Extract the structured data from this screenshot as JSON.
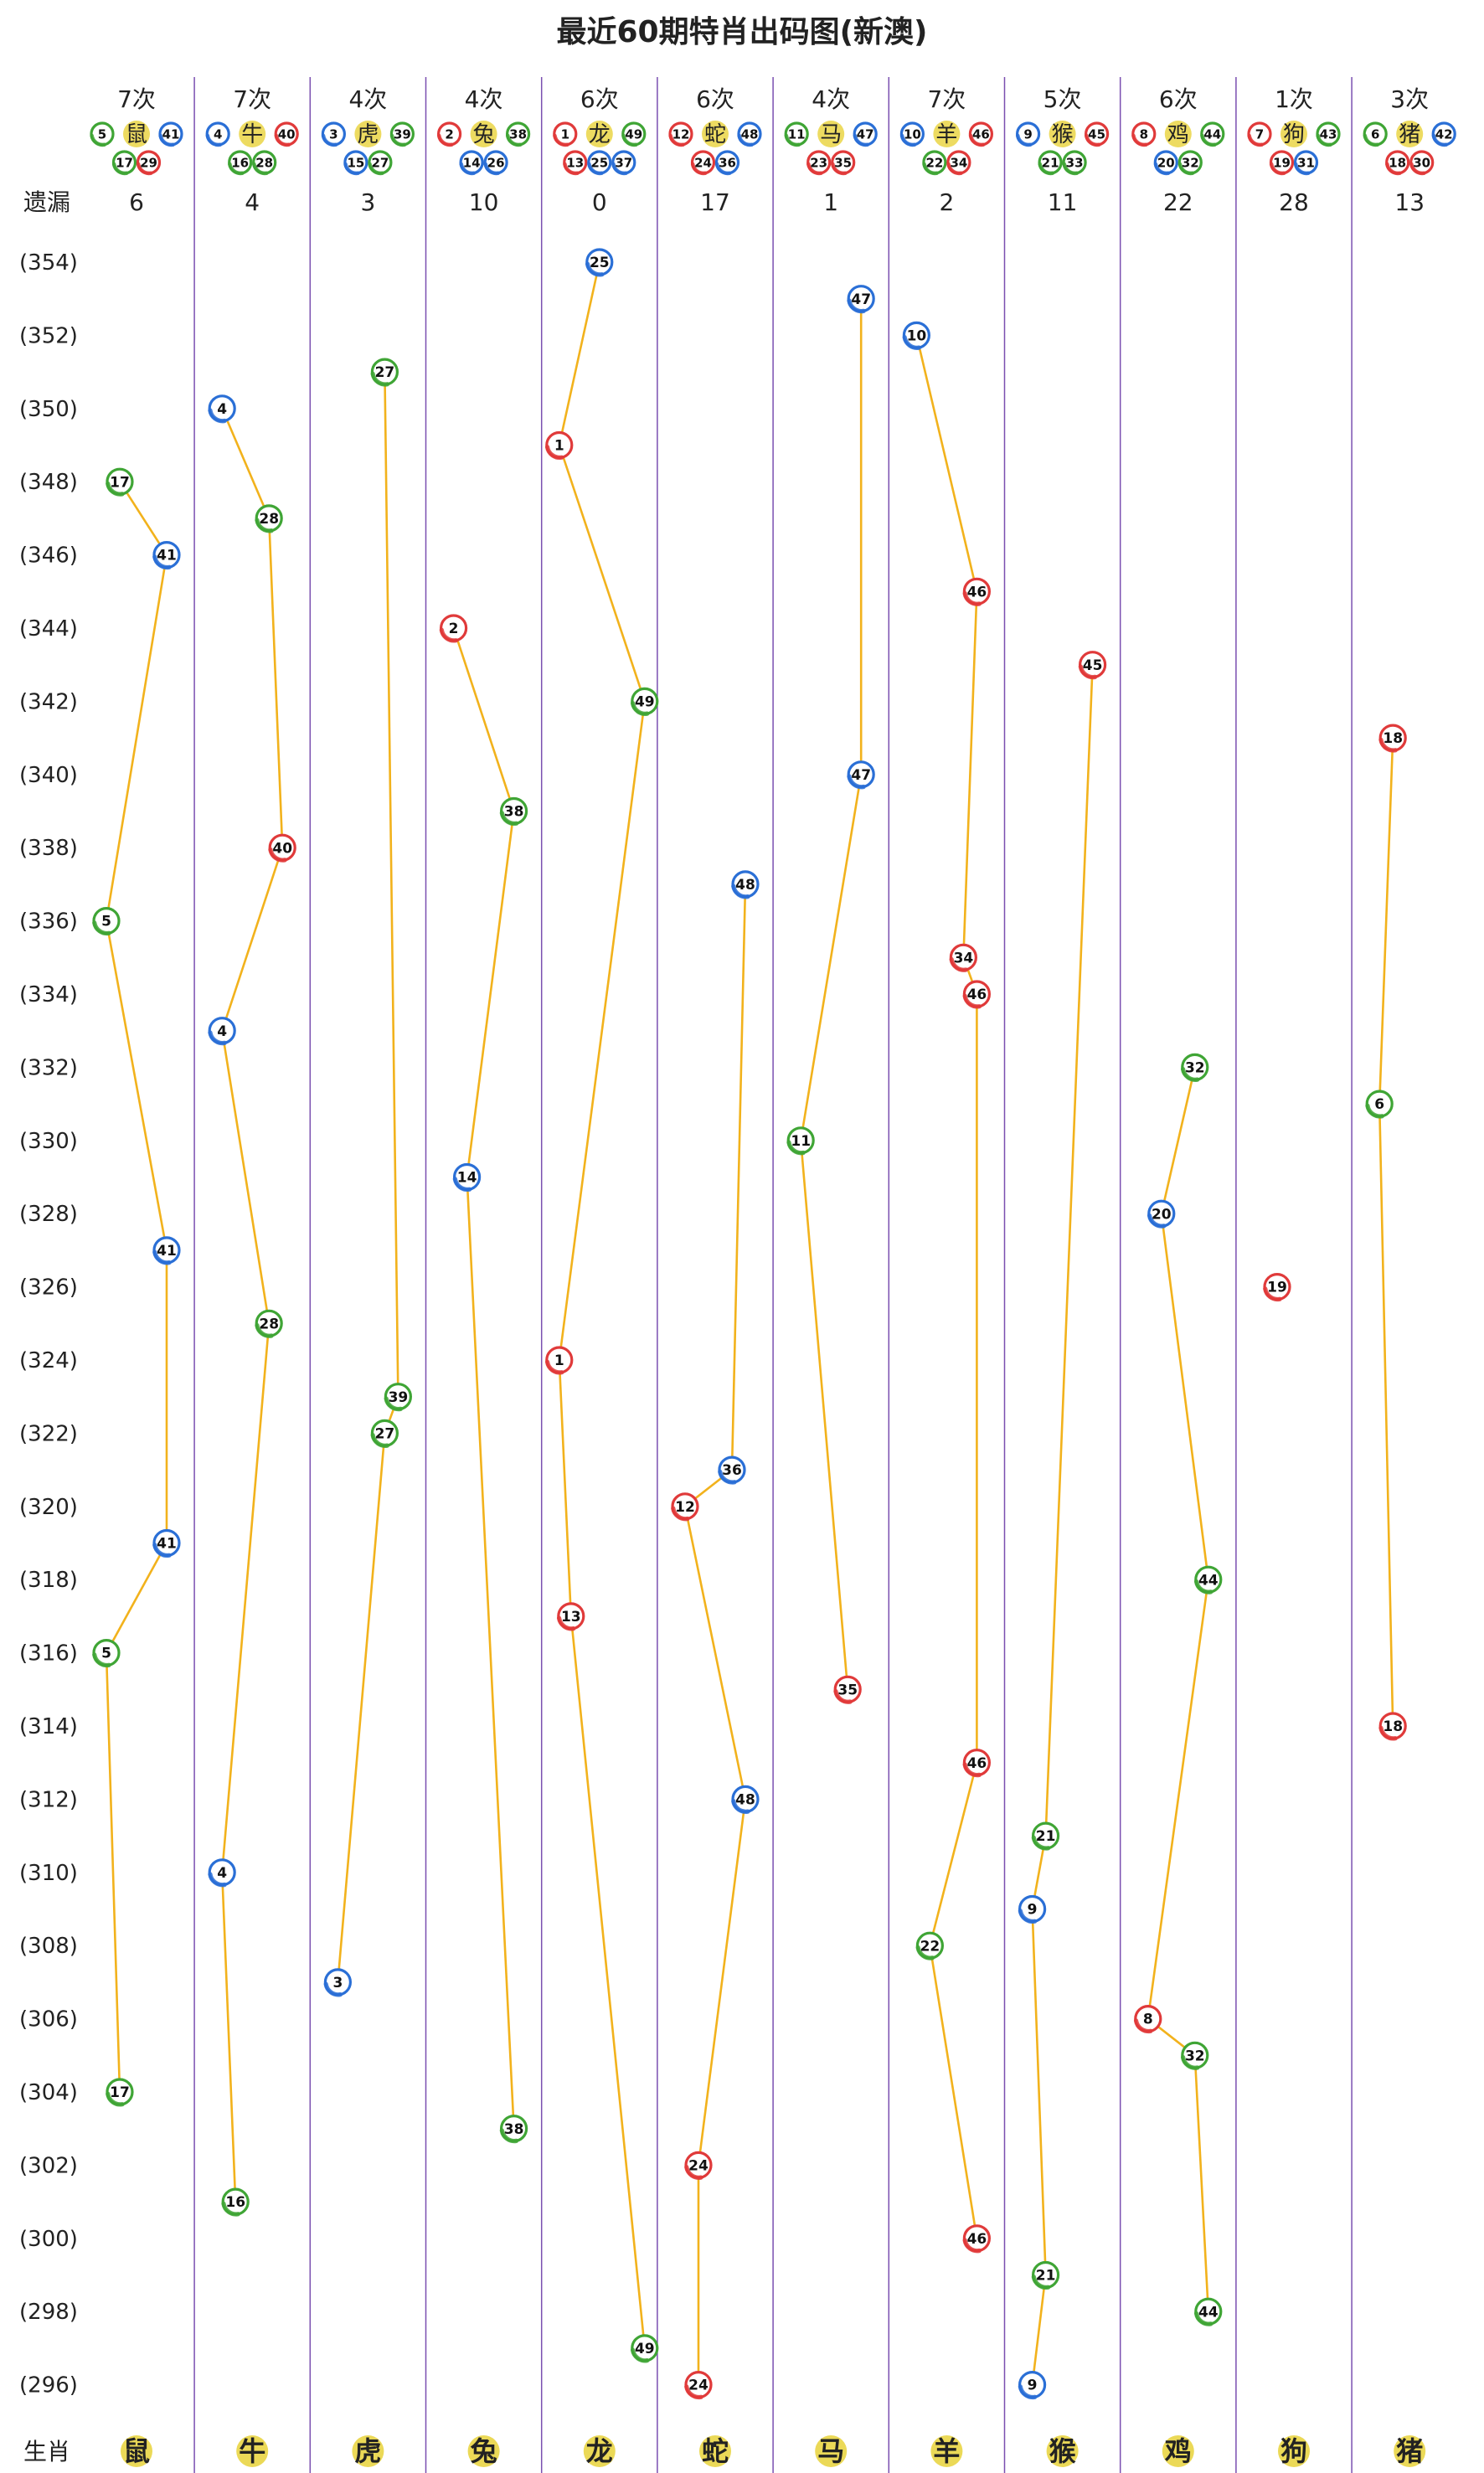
{
  "title": "最近60期特肖出码图(新澳)",
  "row_label_missing": "遗漏",
  "row_label_zodiac": "生肖",
  "colors": {
    "red": "#e03a3a",
    "blue": "#2a6fd6",
    "green": "#3fa535",
    "line": "#f2b21c",
    "divider": "#7a4fb0",
    "zodiac_badge": "#e8d23a"
  },
  "chart_data": {
    "type": "scatter",
    "title": "最近60期特肖出码图(新澳)",
    "period_range": [
      295,
      355
    ],
    "y_tick_labels": [
      "(354)",
      "(352)",
      "(350)",
      "(348)",
      "(346)",
      "(344)",
      "(342)",
      "(340)",
      "(338)",
      "(336)",
      "(334)",
      "(332)",
      "(330)",
      "(328)",
      "(326)",
      "(324)",
      "(322)",
      "(320)",
      "(318)",
      "(316)",
      "(314)",
      "(312)",
      "(310)",
      "(308)",
      "(306)",
      "(304)",
      "(302)",
      "(300)",
      "(298)",
      "(296)"
    ],
    "columns": [
      {
        "zodiac": "鼠",
        "count_label": "7次",
        "missing": "6",
        "numbers": [
          {
            "n": "5",
            "c": "green"
          },
          {
            "n": "41",
            "c": "blue"
          },
          {
            "n": "17",
            "c": "green"
          },
          {
            "n": "29",
            "c": "red"
          }
        ],
        "points": [
          {
            "p": 348,
            "n": "17",
            "c": "green"
          },
          {
            "p": 346,
            "n": "41",
            "c": "blue"
          },
          {
            "p": 336,
            "n": "5",
            "c": "green"
          },
          {
            "p": 327,
            "n": "41",
            "c": "blue"
          },
          {
            "p": 319,
            "n": "41",
            "c": "blue"
          },
          {
            "p": 316,
            "n": "5",
            "c": "green"
          },
          {
            "p": 304,
            "n": "17",
            "c": "green"
          }
        ]
      },
      {
        "zodiac": "牛",
        "count_label": "7次",
        "missing": "4",
        "numbers": [
          {
            "n": "4",
            "c": "blue"
          },
          {
            "n": "40",
            "c": "red"
          },
          {
            "n": "16",
            "c": "green"
          },
          {
            "n": "28",
            "c": "green"
          }
        ],
        "points": [
          {
            "p": 350,
            "n": "4",
            "c": "blue"
          },
          {
            "p": 347,
            "n": "28",
            "c": "green"
          },
          {
            "p": 338,
            "n": "40",
            "c": "red"
          },
          {
            "p": 333,
            "n": "4",
            "c": "blue"
          },
          {
            "p": 325,
            "n": "28",
            "c": "green"
          },
          {
            "p": 310,
            "n": "4",
            "c": "blue"
          },
          {
            "p": 301,
            "n": "16",
            "c": "green"
          }
        ]
      },
      {
        "zodiac": "虎",
        "count_label": "4次",
        "missing": "3",
        "numbers": [
          {
            "n": "3",
            "c": "blue"
          },
          {
            "n": "39",
            "c": "green"
          },
          {
            "n": "15",
            "c": "blue"
          },
          {
            "n": "27",
            "c": "green"
          }
        ],
        "points": [
          {
            "p": 351,
            "n": "27",
            "c": "green"
          },
          {
            "p": 323,
            "n": "39",
            "c": "green"
          },
          {
            "p": 322,
            "n": "27",
            "c": "green"
          },
          {
            "p": 307,
            "n": "3",
            "c": "blue"
          }
        ]
      },
      {
        "zodiac": "兔",
        "count_label": "4次",
        "missing": "10",
        "numbers": [
          {
            "n": "2",
            "c": "red"
          },
          {
            "n": "38",
            "c": "green"
          },
          {
            "n": "14",
            "c": "blue"
          },
          {
            "n": "26",
            "c": "blue"
          }
        ],
        "points": [
          {
            "p": 344,
            "n": "2",
            "c": "red"
          },
          {
            "p": 339,
            "n": "38",
            "c": "green"
          },
          {
            "p": 329,
            "n": "14",
            "c": "blue"
          },
          {
            "p": 303,
            "n": "38",
            "c": "green"
          }
        ]
      },
      {
        "zodiac": "龙",
        "count_label": "6次",
        "missing": "0",
        "numbers": [
          {
            "n": "1",
            "c": "red"
          },
          {
            "n": "49",
            "c": "green"
          },
          {
            "n": "13",
            "c": "red"
          },
          {
            "n": "25",
            "c": "blue"
          },
          {
            "n": "37",
            "c": "blue"
          }
        ],
        "points": [
          {
            "p": 354,
            "n": "25",
            "c": "blue"
          },
          {
            "p": 349,
            "n": "1",
            "c": "red"
          },
          {
            "p": 342,
            "n": "49",
            "c": "green"
          },
          {
            "p": 324,
            "n": "1",
            "c": "red"
          },
          {
            "p": 317,
            "n": "13",
            "c": "red"
          },
          {
            "p": 297,
            "n": "49",
            "c": "green"
          }
        ]
      },
      {
        "zodiac": "蛇",
        "count_label": "6次",
        "missing": "17",
        "numbers": [
          {
            "n": "12",
            "c": "red"
          },
          {
            "n": "48",
            "c": "blue"
          },
          {
            "n": "24",
            "c": "red"
          },
          {
            "n": "36",
            "c": "blue"
          }
        ],
        "points": [
          {
            "p": 337,
            "n": "48",
            "c": "blue"
          },
          {
            "p": 321,
            "n": "36",
            "c": "blue"
          },
          {
            "p": 320,
            "n": "12",
            "c": "red"
          },
          {
            "p": 312,
            "n": "48",
            "c": "blue"
          },
          {
            "p": 302,
            "n": "24",
            "c": "red"
          },
          {
            "p": 296,
            "n": "24",
            "c": "red"
          }
        ]
      },
      {
        "zodiac": "马",
        "count_label": "4次",
        "missing": "1",
        "numbers": [
          {
            "n": "11",
            "c": "green"
          },
          {
            "n": "47",
            "c": "blue"
          },
          {
            "n": "23",
            "c": "red"
          },
          {
            "n": "35",
            "c": "red"
          }
        ],
        "points": [
          {
            "p": 353,
            "n": "47",
            "c": "blue"
          },
          {
            "p": 340,
            "n": "47",
            "c": "blue"
          },
          {
            "p": 330,
            "n": "11",
            "c": "green"
          },
          {
            "p": 315,
            "n": "35",
            "c": "red"
          }
        ]
      },
      {
        "zodiac": "羊",
        "count_label": "7次",
        "missing": "2",
        "numbers": [
          {
            "n": "10",
            "c": "blue"
          },
          {
            "n": "46",
            "c": "red"
          },
          {
            "n": "22",
            "c": "green"
          },
          {
            "n": "34",
            "c": "red"
          }
        ],
        "points": [
          {
            "p": 352,
            "n": "10",
            "c": "blue"
          },
          {
            "p": 345,
            "n": "46",
            "c": "red"
          },
          {
            "p": 335,
            "n": "34",
            "c": "red"
          },
          {
            "p": 334,
            "n": "46",
            "c": "red"
          },
          {
            "p": 313,
            "n": "46",
            "c": "red"
          },
          {
            "p": 308,
            "n": "22",
            "c": "green"
          },
          {
            "p": 300,
            "n": "46",
            "c": "red"
          }
        ]
      },
      {
        "zodiac": "猴",
        "count_label": "5次",
        "missing": "11",
        "numbers": [
          {
            "n": "9",
            "c": "blue"
          },
          {
            "n": "45",
            "c": "red"
          },
          {
            "n": "21",
            "c": "green"
          },
          {
            "n": "33",
            "c": "green"
          }
        ],
        "points": [
          {
            "p": 343,
            "n": "45",
            "c": "red"
          },
          {
            "p": 311,
            "n": "21",
            "c": "green"
          },
          {
            "p": 309,
            "n": "9",
            "c": "blue"
          },
          {
            "p": 299,
            "n": "21",
            "c": "green"
          },
          {
            "p": 296,
            "n": "9",
            "c": "blue"
          }
        ]
      },
      {
        "zodiac": "鸡",
        "count_label": "6次",
        "missing": "22",
        "numbers": [
          {
            "n": "8",
            "c": "red"
          },
          {
            "n": "44",
            "c": "green"
          },
          {
            "n": "20",
            "c": "blue"
          },
          {
            "n": "32",
            "c": "green"
          }
        ],
        "points": [
          {
            "p": 332,
            "n": "32",
            "c": "green"
          },
          {
            "p": 328,
            "n": "20",
            "c": "blue"
          },
          {
            "p": 318,
            "n": "44",
            "c": "green"
          },
          {
            "p": 306,
            "n": "8",
            "c": "red"
          },
          {
            "p": 305,
            "n": "32",
            "c": "green"
          },
          {
            "p": 298,
            "n": "44",
            "c": "green"
          }
        ]
      },
      {
        "zodiac": "狗",
        "count_label": "1次",
        "missing": "28",
        "numbers": [
          {
            "n": "7",
            "c": "red"
          },
          {
            "n": "43",
            "c": "green"
          },
          {
            "n": "19",
            "c": "red"
          },
          {
            "n": "31",
            "c": "blue"
          }
        ],
        "points": [
          {
            "p": 326,
            "n": "19",
            "c": "red"
          }
        ]
      },
      {
        "zodiac": "猪",
        "count_label": "3次",
        "missing": "13",
        "numbers": [
          {
            "n": "6",
            "c": "green"
          },
          {
            "n": "42",
            "c": "blue"
          },
          {
            "n": "18",
            "c": "red"
          },
          {
            "n": "30",
            "c": "red"
          }
        ],
        "points": [
          {
            "p": 341,
            "n": "18",
            "c": "red"
          },
          {
            "p": 331,
            "n": "6",
            "c": "green"
          },
          {
            "p": 314,
            "n": "18",
            "c": "red"
          }
        ]
      }
    ]
  }
}
